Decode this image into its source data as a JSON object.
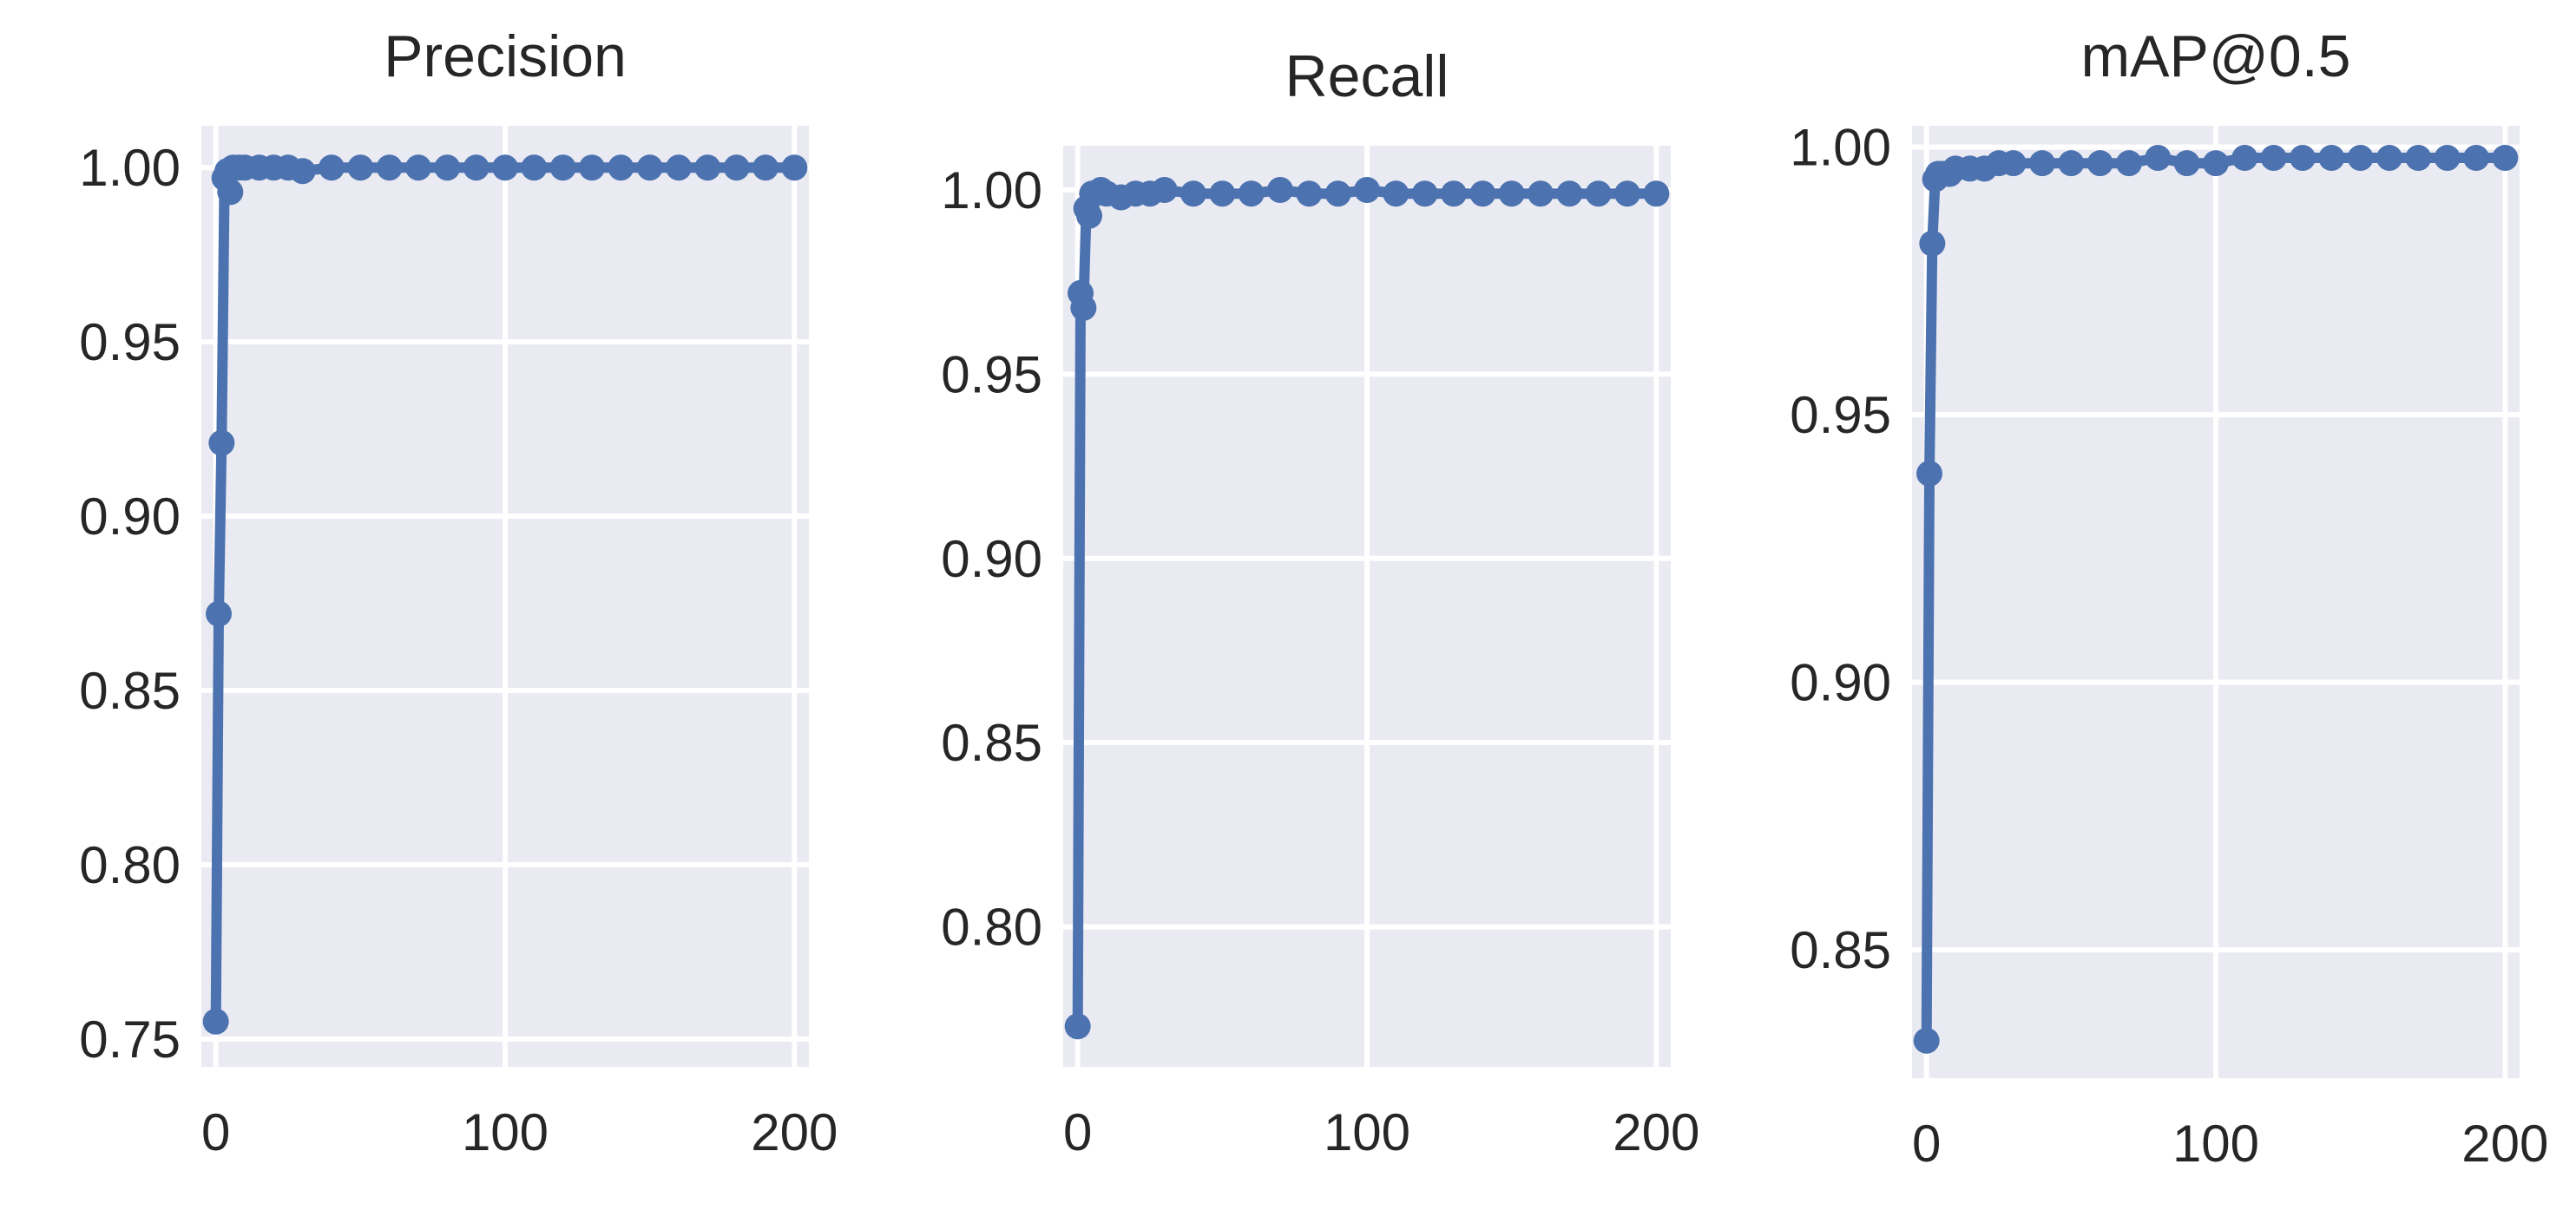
{
  "style": {
    "line_color": "#4c72b0",
    "panel_background": "#eaeaf2",
    "grid_color": "#ffffff"
  },
  "chart_data": [
    {
      "type": "line",
      "title": "Precision",
      "xlim": [
        -5,
        205
      ],
      "ylim": [
        0.742,
        1.012
      ],
      "xticks": [
        0,
        100,
        200
      ],
      "xtick_labels": [
        "0",
        "100",
        "200"
      ],
      "yticks": [
        0.75,
        0.8,
        0.85,
        0.9,
        0.95,
        1.0
      ],
      "ytick_labels": [
        "0.75",
        "0.80",
        "0.85",
        "0.90",
        "0.95",
        "1.00"
      ],
      "grid": true,
      "x": [
        0,
        1,
        2,
        3,
        4,
        5,
        6,
        8,
        10,
        15,
        20,
        25,
        30,
        40,
        50,
        60,
        70,
        80,
        90,
        100,
        110,
        120,
        130,
        140,
        150,
        160,
        170,
        180,
        190,
        200
      ],
      "values": [
        0.755,
        0.872,
        0.921,
        0.997,
        0.999,
        0.993,
        1.0,
        1.0,
        1.0,
        1.0,
        1.0,
        1.0,
        0.999,
        1.0,
        1.0,
        1.0,
        1.0,
        1.0,
        1.0,
        1.0,
        1.0,
        1.0,
        1.0,
        1.0,
        1.0,
        1.0,
        1.0,
        1.0,
        1.0,
        1.0
      ]
    },
    {
      "type": "line",
      "title": "Recall",
      "xlim": [
        -5,
        205
      ],
      "ylim": [
        0.762,
        1.012
      ],
      "xticks": [
        0,
        100,
        200
      ],
      "xtick_labels": [
        "0",
        "100",
        "200"
      ],
      "yticks": [
        0.8,
        0.85,
        0.9,
        0.95,
        1.0
      ],
      "ytick_labels": [
        "0.80",
        "0.85",
        "0.90",
        "0.95",
        "1.00"
      ],
      "grid": true,
      "x": [
        0,
        1,
        2,
        3,
        4,
        5,
        6,
        8,
        10,
        15,
        20,
        25,
        30,
        40,
        50,
        60,
        70,
        80,
        90,
        100,
        110,
        120,
        130,
        140,
        150,
        160,
        170,
        180,
        190,
        200
      ],
      "values": [
        0.773,
        0.972,
        0.968,
        0.995,
        0.993,
        0.999,
        0.999,
        1.0,
        0.999,
        0.998,
        0.999,
        0.999,
        1.0,
        0.999,
        0.999,
        0.999,
        1.0,
        0.999,
        0.999,
        1.0,
        0.999,
        0.999,
        0.999,
        0.999,
        0.999,
        0.999,
        0.999,
        0.999,
        0.999,
        0.999
      ]
    },
    {
      "type": "line",
      "title": "mAP@0.5",
      "xlim": [
        -5,
        205
      ],
      "ylim": [
        0.826,
        1.004
      ],
      "xticks": [
        0,
        100,
        200
      ],
      "xtick_labels": [
        "0",
        "100",
        "200"
      ],
      "yticks": [
        0.85,
        0.9,
        0.95,
        1.0
      ],
      "ytick_labels": [
        "0.85",
        "0.90",
        "0.95",
        "1.00"
      ],
      "grid": true,
      "x": [
        0,
        1,
        2,
        3,
        4,
        5,
        6,
        8,
        10,
        15,
        20,
        25,
        30,
        40,
        50,
        60,
        70,
        80,
        90,
        100,
        110,
        120,
        130,
        140,
        150,
        160,
        170,
        180,
        190,
        200
      ],
      "values": [
        0.833,
        0.939,
        0.982,
        0.994,
        0.995,
        0.995,
        0.995,
        0.995,
        0.996,
        0.996,
        0.996,
        0.997,
        0.997,
        0.997,
        0.997,
        0.997,
        0.997,
        0.998,
        0.997,
        0.997,
        0.998,
        0.998,
        0.998,
        0.998,
        0.998,
        0.998,
        0.998,
        0.998,
        0.998,
        0.998
      ]
    }
  ]
}
